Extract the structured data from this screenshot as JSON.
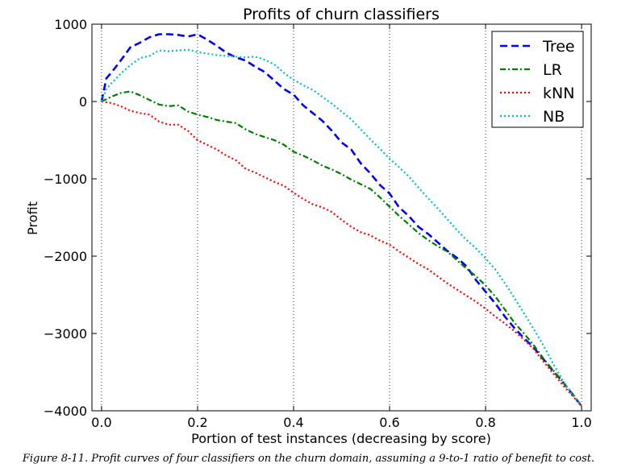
{
  "chart_data": {
    "type": "line",
    "title": "Profits of churn classifiers",
    "xlabel": "Portion of test instances (decreasing by score)",
    "ylabel": "Profit",
    "xlim": [
      -0.02,
      1.02
    ],
    "ylim": [
      -4000,
      1000
    ],
    "xticks": [
      0.0,
      0.2,
      0.4,
      0.6,
      0.8,
      1.0
    ],
    "xtick_labels": [
      "0.0",
      "0.2",
      "0.4",
      "0.6",
      "0.8",
      "1.0"
    ],
    "yticks": [
      1000,
      0,
      -1000,
      -2000,
      -3000,
      -4000
    ],
    "ytick_labels": [
      "1000",
      "0",
      "−1000",
      "−2000",
      "−3000",
      "−4000"
    ],
    "grid": "vertical dotted lines at x ticks",
    "legend_position": "top-right",
    "series": [
      {
        "name": "Tree",
        "color": "#0000ff",
        "style": "dashed",
        "x": [
          0,
          0.005,
          0.01,
          0.02,
          0.04,
          0.06,
          0.08,
          0.1,
          0.12,
          0.14,
          0.16,
          0.18,
          0.2,
          0.22,
          0.24,
          0.26,
          0.28,
          0.3,
          0.32,
          0.34,
          0.36,
          0.38,
          0.4,
          0.42,
          0.44,
          0.46,
          0.48,
          0.5,
          0.52,
          0.54,
          0.56,
          0.58,
          0.6,
          0.62,
          0.64,
          0.66,
          0.68,
          0.7,
          0.72,
          0.74,
          0.76,
          0.78,
          0.8,
          0.82,
          0.84,
          0.86,
          0.88,
          0.9,
          0.92,
          0.94,
          0.96,
          0.98,
          1.0
        ],
        "y": [
          0,
          150,
          300,
          370,
          530,
          700,
          760,
          830,
          870,
          870,
          860,
          840,
          870,
          800,
          720,
          630,
          570,
          530,
          450,
          380,
          270,
          160,
          90,
          -50,
          -150,
          -250,
          -380,
          -530,
          -620,
          -800,
          -930,
          -1080,
          -1190,
          -1370,
          -1480,
          -1620,
          -1710,
          -1820,
          -1930,
          -2020,
          -2130,
          -2310,
          -2460,
          -2610,
          -2780,
          -2930,
          -3060,
          -3180,
          -3330,
          -3480,
          -3620,
          -3780,
          -3940
        ]
      },
      {
        "name": "LR",
        "color": "#008000",
        "style": "dash-dot",
        "x": [
          0,
          0.01,
          0.02,
          0.04,
          0.06,
          0.08,
          0.1,
          0.12,
          0.14,
          0.16,
          0.18,
          0.2,
          0.22,
          0.24,
          0.26,
          0.28,
          0.3,
          0.32,
          0.34,
          0.36,
          0.38,
          0.4,
          0.42,
          0.44,
          0.46,
          0.48,
          0.5,
          0.52,
          0.54,
          0.56,
          0.58,
          0.6,
          0.62,
          0.64,
          0.66,
          0.68,
          0.7,
          0.72,
          0.74,
          0.76,
          0.78,
          0.8,
          0.82,
          0.84,
          0.86,
          0.88,
          0.9,
          0.92,
          0.94,
          0.96,
          0.98,
          1.0
        ],
        "y": [
          0,
          30,
          60,
          110,
          130,
          80,
          20,
          -40,
          -60,
          -50,
          -130,
          -170,
          -200,
          -240,
          -260,
          -280,
          -360,
          -420,
          -460,
          -500,
          -560,
          -650,
          -700,
          -760,
          -830,
          -880,
          -940,
          -1010,
          -1070,
          -1130,
          -1240,
          -1360,
          -1480,
          -1590,
          -1700,
          -1790,
          -1870,
          -1940,
          -2050,
          -2160,
          -2260,
          -2380,
          -2520,
          -2690,
          -2860,
          -3000,
          -3150,
          -3320,
          -3470,
          -3620,
          -3770,
          -3940
        ]
      },
      {
        "name": "kNN",
        "color": "#ff0000",
        "style": "dotted",
        "x": [
          0,
          0.01,
          0.02,
          0.04,
          0.06,
          0.08,
          0.1,
          0.12,
          0.14,
          0.16,
          0.18,
          0.2,
          0.22,
          0.24,
          0.26,
          0.28,
          0.3,
          0.32,
          0.34,
          0.36,
          0.38,
          0.4,
          0.42,
          0.44,
          0.46,
          0.48,
          0.5,
          0.52,
          0.54,
          0.56,
          0.58,
          0.6,
          0.62,
          0.64,
          0.66,
          0.68,
          0.7,
          0.72,
          0.74,
          0.76,
          0.78,
          0.8,
          0.82,
          0.84,
          0.86,
          0.88,
          0.9,
          0.92,
          0.94,
          0.96,
          0.98,
          1.0
        ],
        "y": [
          0,
          -10,
          -20,
          -60,
          -120,
          -150,
          -170,
          -260,
          -300,
          -300,
          -380,
          -500,
          -560,
          -620,
          -700,
          -760,
          -870,
          -920,
          -980,
          -1040,
          -1090,
          -1180,
          -1260,
          -1330,
          -1370,
          -1430,
          -1530,
          -1620,
          -1690,
          -1730,
          -1800,
          -1850,
          -1940,
          -2020,
          -2100,
          -2170,
          -2260,
          -2350,
          -2430,
          -2510,
          -2590,
          -2680,
          -2780,
          -2870,
          -2970,
          -3080,
          -3200,
          -3360,
          -3510,
          -3660,
          -3800,
          -3940
        ]
      },
      {
        "name": "NB",
        "color": "#00bfbf",
        "style": "dotted",
        "x": [
          0,
          0.005,
          0.01,
          0.02,
          0.04,
          0.06,
          0.08,
          0.1,
          0.12,
          0.14,
          0.16,
          0.18,
          0.2,
          0.22,
          0.24,
          0.26,
          0.28,
          0.3,
          0.32,
          0.34,
          0.36,
          0.38,
          0.4,
          0.42,
          0.44,
          0.46,
          0.48,
          0.5,
          0.52,
          0.54,
          0.56,
          0.58,
          0.6,
          0.62,
          0.64,
          0.66,
          0.68,
          0.7,
          0.72,
          0.74,
          0.76,
          0.78,
          0.8,
          0.82,
          0.84,
          0.86,
          0.88,
          0.9,
          0.92,
          0.94,
          0.96,
          0.98,
          1.0
        ],
        "y": [
          0,
          80,
          160,
          230,
          360,
          470,
          560,
          590,
          660,
          650,
          660,
          670,
          640,
          620,
          600,
          590,
          580,
          570,
          580,
          540,
          480,
          370,
          280,
          210,
          150,
          60,
          -30,
          -130,
          -230,
          -360,
          -490,
          -610,
          -740,
          -850,
          -970,
          -1110,
          -1250,
          -1380,
          -1520,
          -1660,
          -1790,
          -1900,
          -2030,
          -2170,
          -2350,
          -2540,
          -2740,
          -2940,
          -3150,
          -3380,
          -3600,
          -3790,
          -3940
        ]
      }
    ]
  },
  "caption": "Figure 8-11. Profit curves of four classifiers on the churn domain, assuming a 9-to-1 ratio of benefit to cost."
}
